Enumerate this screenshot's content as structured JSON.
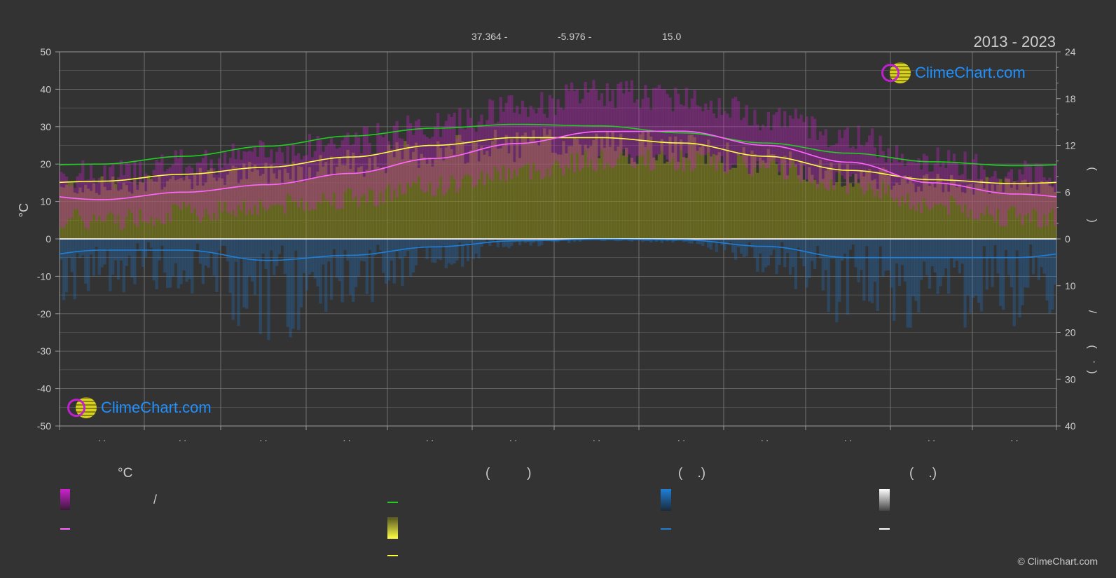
{
  "header": {
    "lat": "37.364 -",
    "lon": "-5.976 -",
    "elev": "15.0",
    "years": "2013 - 2023"
  },
  "logo": {
    "text": "ClimeChart.com"
  },
  "copyright": "© ClimeChart.com",
  "colors": {
    "background": "#333333",
    "grid": "#777777",
    "temp_range_high": "#d020d0",
    "temp_range_low": "#8a8a18",
    "daylight": "#22cc22",
    "sunshine": "#ffff44",
    "mean_temp": "#ff66ff",
    "precip": "#1f7fd8",
    "zero_line": "#dddddd"
  },
  "legend": {
    "temp_heading": "°C",
    "sun_heading_parens": "(          )",
    "rain_heading_parens": "(    .)",
    "snow_heading_parens": "(    .)",
    "temp_range_slash": "/"
  },
  "chart_data": {
    "type": "area",
    "left_axis": {
      "label": "°C",
      "ticks": [
        "50",
        "40",
        "30",
        "20",
        "10",
        "0",
        "-10",
        "-20",
        "-30",
        "-40",
        "-50"
      ],
      "ylim": [
        -50,
        50
      ]
    },
    "right_axis_top": {
      "ticks": [
        "24",
        "18",
        "12",
        "6",
        "0"
      ],
      "ylim": [
        0,
        24
      ]
    },
    "right_axis_bottom": {
      "ticks": [
        "10",
        "20",
        "30",
        "40"
      ],
      "ylim": [
        0,
        40
      ]
    },
    "right_axis_label_glyphs": [
      "(",
      ")",
      "(",
      ")",
      "/",
      "(",
      "·",
      ")"
    ],
    "x_tick_labels": [
      "· ·",
      "· ·",
      "· ·",
      "· ·",
      "· ·",
      "· ·",
      "· ·",
      "· ·",
      "· ·",
      "· ·",
      "· ·",
      "· ·"
    ],
    "months": 12,
    "series": [
      {
        "key": "daylight",
        "axis": "hours",
        "values": [
          9.6,
          10.6,
          11.9,
          13.2,
          14.2,
          14.7,
          14.5,
          13.6,
          12.3,
          11.0,
          9.9,
          9.4
        ]
      },
      {
        "key": "sunshine",
        "axis": "hours",
        "values": [
          7.4,
          8.3,
          9.2,
          10.5,
          12.0,
          13.0,
          13.0,
          12.3,
          10.6,
          8.8,
          7.6,
          7.1
        ]
      },
      {
        "key": "mean_temp",
        "axis": "celsius",
        "values": [
          10.5,
          12.5,
          14.5,
          17.5,
          21.5,
          25.5,
          28.7,
          28.8,
          25.0,
          20.5,
          15.0,
          12.0
        ]
      },
      {
        "key": "temp_max",
        "axis": "celsius",
        "values": [
          17,
          20,
          23,
          26,
          30,
          35,
          39,
          38,
          33,
          27,
          21,
          18
        ]
      },
      {
        "key": "temp_min",
        "axis": "celsius",
        "values": [
          5,
          7,
          9,
          11,
          14,
          18,
          21,
          21,
          19,
          15,
          9,
          6
        ]
      },
      {
        "key": "precip_daily_mean",
        "axis": "mm",
        "values": [
          2.4,
          2.4,
          4.6,
          3.5,
          1.7,
          0.4,
          0.1,
          0.2,
          1.6,
          4.0,
          4.0,
          4.0
        ]
      }
    ]
  }
}
